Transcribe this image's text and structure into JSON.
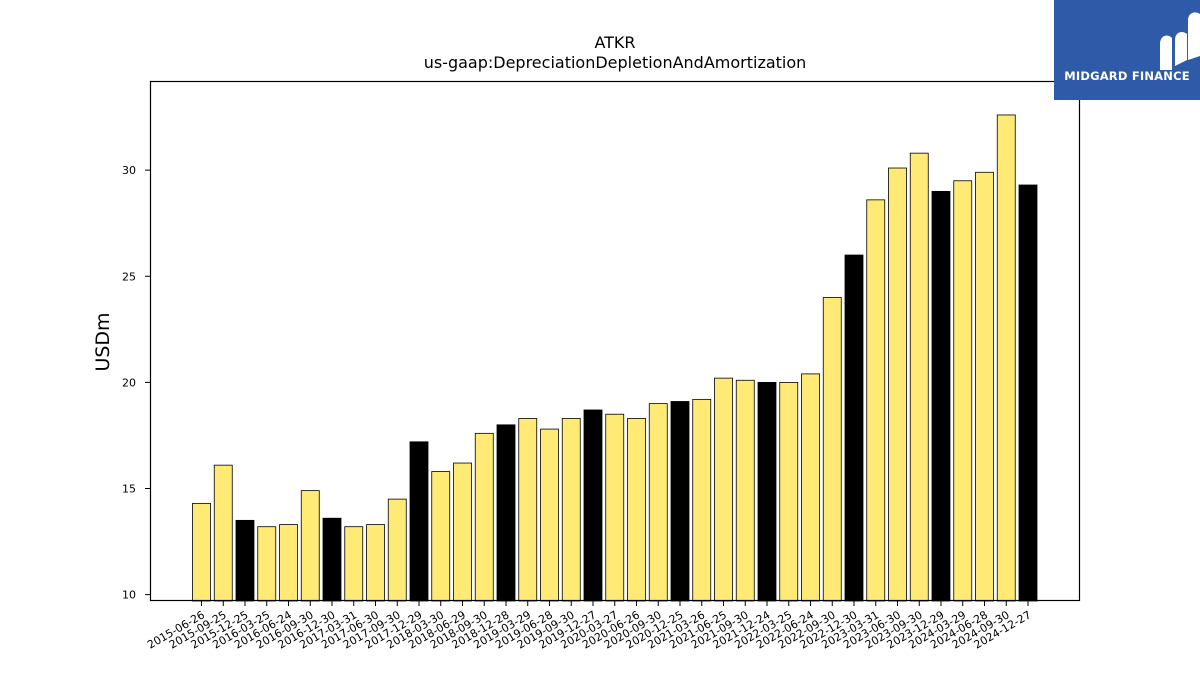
{
  "brand": {
    "name": "MIDGARD FINANCE",
    "bg_color": "#2f5aa8",
    "icon": "midgard-logo-icon"
  },
  "chart_data": {
    "type": "bar",
    "title": "ATKR",
    "subtitle": "us-gaap:DepreciationDepletionAndAmortization",
    "xlabel": "",
    "ylabel": "USDm",
    "ylim": [
      9.7,
      34.2
    ],
    "yticks": [
      10,
      15,
      20,
      25,
      30
    ],
    "grid": false,
    "colors": {
      "default": "#ffea76",
      "highlight": "#000000",
      "edge": "#000000"
    },
    "categories": [
      "2015-06-26",
      "2015-09-25",
      "2015-12-25",
      "2016-03-25",
      "2016-06-24",
      "2016-09-30",
      "2016-12-30",
      "2017-03-31",
      "2017-06-30",
      "2017-09-30",
      "2017-12-29",
      "2018-03-30",
      "2018-06-29",
      "2018-09-30",
      "2018-12-28",
      "2019-03-29",
      "2019-06-28",
      "2019-09-30",
      "2019-12-27",
      "2020-03-27",
      "2020-06-26",
      "2020-09-30",
      "2020-12-25",
      "2021-03-26",
      "2021-06-25",
      "2021-09-30",
      "2021-12-24",
      "2022-03-25",
      "2022-06-24",
      "2022-09-30",
      "2022-12-30",
      "2023-03-31",
      "2023-06-30",
      "2023-09-30",
      "2023-12-29",
      "2024-03-29",
      "2024-06-28",
      "2024-09-30",
      "2024-12-27"
    ],
    "values": [
      14.3,
      16.1,
      13.5,
      13.2,
      13.3,
      14.9,
      13.6,
      13.2,
      13.3,
      14.5,
      17.2,
      15.8,
      16.2,
      17.6,
      18.0,
      18.3,
      17.8,
      18.3,
      18.7,
      18.5,
      18.3,
      19.0,
      19.1,
      19.2,
      20.2,
      20.1,
      20.0,
      20.0,
      20.4,
      24.0,
      26.0,
      28.6,
      30.1,
      30.8,
      29.0,
      29.5,
      29.9,
      32.6,
      29.3
    ],
    "highlighted": [
      false,
      false,
      true,
      false,
      false,
      false,
      true,
      false,
      false,
      false,
      true,
      false,
      false,
      false,
      true,
      false,
      false,
      false,
      true,
      false,
      false,
      false,
      true,
      false,
      false,
      false,
      true,
      false,
      false,
      false,
      true,
      false,
      false,
      false,
      true,
      false,
      false,
      false,
      true
    ]
  }
}
